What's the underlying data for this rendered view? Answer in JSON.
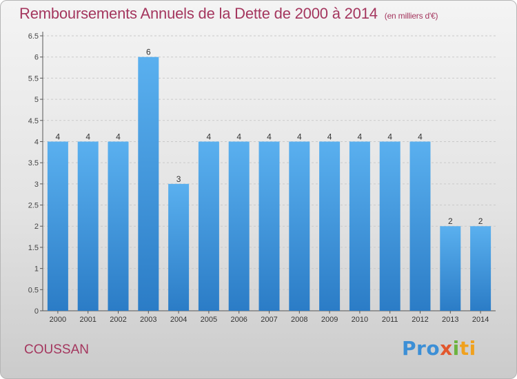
{
  "header": {
    "title": "Remboursements Annuels de la Dette de 2000 à 2014",
    "unit": "(en milliers d'€)"
  },
  "footer": {
    "commune": "COUSSAN",
    "logo": [
      "Pro",
      "x",
      "i",
      "ti"
    ]
  },
  "colors": {
    "title": "#a4365e",
    "bar_light": "#5ab0ef",
    "bar_dark": "#2b7cc6",
    "axis": "#555555",
    "grid": "#c9c9c9"
  },
  "chart_data": {
    "type": "bar",
    "title": "Remboursements Annuels de la Dette de 2000 à 2014",
    "xlabel": "",
    "ylabel": "",
    "categories": [
      "2000",
      "2001",
      "2002",
      "2003",
      "2004",
      "2005",
      "2006",
      "2007",
      "2008",
      "2009",
      "2010",
      "2011",
      "2012",
      "2013",
      "2014"
    ],
    "values": [
      4,
      4,
      4,
      6,
      3,
      4,
      4,
      4,
      4,
      4,
      4,
      4,
      4,
      2,
      2
    ],
    "data_labels": [
      "4",
      "4",
      "4",
      "6",
      "3",
      "4",
      "4",
      "4",
      "4",
      "4",
      "4",
      "4",
      "4",
      "2",
      "2"
    ],
    "yticks": [
      "0",
      "0.5",
      "1",
      "1.5",
      "2",
      "2.5",
      "3",
      "3.5",
      "4",
      "4.5",
      "5",
      "5.5",
      "6",
      "6.5"
    ],
    "ylim": [
      0,
      6.5
    ],
    "grid": true,
    "legend": "none"
  }
}
